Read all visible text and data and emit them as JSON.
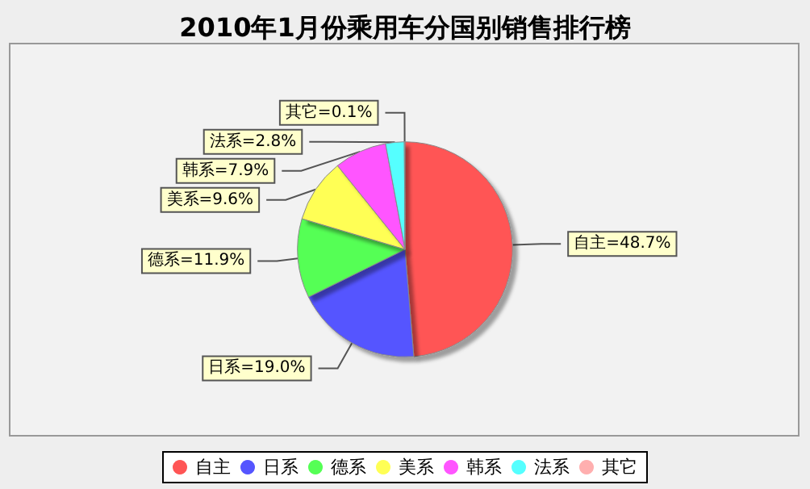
{
  "chart_data": {
    "type": "pie",
    "title": "2010年1月份乘用车分国别销售排行榜",
    "categories": [
      "自主",
      "日系",
      "德系",
      "美系",
      "韩系",
      "法系",
      "其它"
    ],
    "values": [
      48.7,
      19.0,
      11.9,
      9.6,
      7.9,
      2.8,
      0.1
    ],
    "colors": [
      "#ff5555",
      "#5555ff",
      "#55ff55",
      "#ffff55",
      "#ff55ff",
      "#55ffff",
      "#ffafaf"
    ],
    "value_labels": [
      "自主=48.7%",
      "日系=19.0%",
      "德系=11.9%",
      "美系=9.6%",
      "韩系=7.9%",
      "法系=2.8%",
      "其它=0.1%"
    ],
    "legend": "bottom"
  }
}
